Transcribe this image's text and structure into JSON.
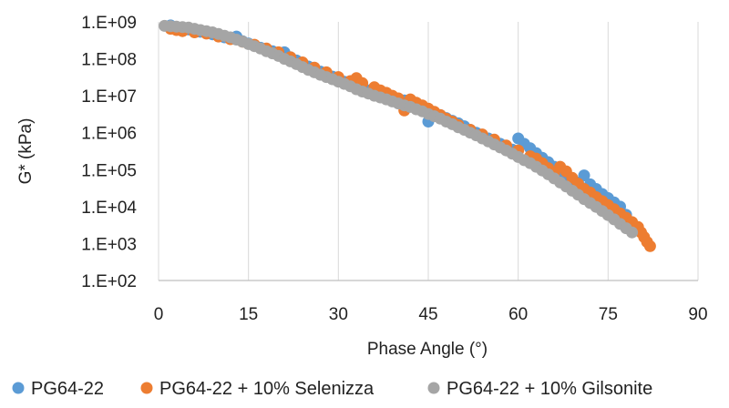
{
  "chart_data": {
    "type": "scatter",
    "xlabel": "Phase Angle (°)",
    "ylabel": "G* (kPa)",
    "xlim": [
      0,
      90
    ],
    "ylim_log10": [
      2,
      9
    ],
    "y_scale": "log",
    "grid": "vertical",
    "legend_placement": "bottom",
    "x_ticks": [
      "0",
      "15",
      "30",
      "45",
      "60",
      "75",
      "90"
    ],
    "y_ticks": [
      "1.E+02",
      "1.E+03",
      "1.E+04",
      "1.E+05",
      "1.E+06",
      "1.E+07",
      "1.E+08",
      "1.E+09"
    ],
    "series": [
      {
        "name": "PG64-22",
        "color": "#5B9BD5",
        "points": [
          [
            2,
            800000000
          ],
          [
            3,
            700000000
          ],
          [
            4,
            650000000
          ],
          [
            5,
            620000000
          ],
          [
            6,
            580000000
          ],
          [
            7,
            540000000
          ],
          [
            8,
            500000000
          ],
          [
            9,
            460000000
          ],
          [
            10,
            420000000
          ],
          [
            11,
            380000000
          ],
          [
            12,
            350000000
          ],
          [
            13,
            400000000
          ],
          [
            14,
            300000000
          ],
          [
            15,
            260000000
          ],
          [
            16,
            230000000
          ],
          [
            17,
            200000000
          ],
          [
            18,
            180000000
          ],
          [
            19,
            160000000
          ],
          [
            20,
            140000000
          ],
          [
            21,
            150000000
          ],
          [
            22,
            110000000
          ],
          [
            23,
            90000000
          ],
          [
            24,
            75000000
          ],
          [
            25,
            62000000
          ],
          [
            26,
            52000000
          ],
          [
            27,
            45000000
          ],
          [
            28,
            38000000
          ],
          [
            29,
            33000000
          ],
          [
            30,
            28000000
          ],
          [
            31,
            24000000
          ],
          [
            32,
            21000000
          ],
          [
            33,
            19000000
          ],
          [
            34,
            16000000
          ],
          [
            35,
            14000000
          ],
          [
            36,
            12000000
          ],
          [
            37,
            11000000
          ],
          [
            38,
            9500000
          ],
          [
            39,
            8500000
          ],
          [
            40,
            8000000
          ],
          [
            41,
            7500000
          ],
          [
            42,
            7000000
          ],
          [
            43,
            6000000
          ],
          [
            44,
            5000000
          ],
          [
            45,
            2000000
          ],
          [
            46,
            3500000
          ],
          [
            47,
            3000000
          ],
          [
            48,
            2500000
          ],
          [
            49,
            2100000
          ],
          [
            50,
            1800000
          ],
          [
            51,
            1500000
          ],
          [
            52,
            1200000
          ],
          [
            53,
            1000000
          ],
          [
            54,
            850000
          ],
          [
            55,
            700000
          ],
          [
            56,
            600000
          ],
          [
            57,
            500000
          ],
          [
            58,
            420000
          ],
          [
            59,
            350000
          ],
          [
            60,
            700000
          ],
          [
            61,
            500000
          ],
          [
            62,
            380000
          ],
          [
            63,
            280000
          ],
          [
            64,
            210000
          ],
          [
            65,
            160000
          ],
          [
            66,
            120000
          ],
          [
            67,
            90000
          ],
          [
            68,
            70000
          ],
          [
            69,
            55000
          ],
          [
            70,
            45000
          ],
          [
            71,
            70000
          ],
          [
            72,
            40000
          ],
          [
            73,
            30000
          ],
          [
            74,
            22000
          ],
          [
            75,
            17000
          ],
          [
            76,
            13000
          ],
          [
            77,
            10000
          ],
          [
            78,
            6000
          ],
          [
            79,
            3500
          ]
        ]
      },
      {
        "name": "PG64-22 + 10% Selenizza",
        "color": "#ED7D31",
        "points": [
          [
            2,
            650000000
          ],
          [
            3,
            600000000
          ],
          [
            4,
            560000000
          ],
          [
            6,
            520000000
          ],
          [
            8,
            480000000
          ],
          [
            10,
            400000000
          ],
          [
            12,
            340000000
          ],
          [
            14,
            290000000
          ],
          [
            16,
            240000000
          ],
          [
            18,
            190000000
          ],
          [
            20,
            150000000
          ],
          [
            22,
            110000000
          ],
          [
            24,
            80000000
          ],
          [
            26,
            58000000
          ],
          [
            28,
            43000000
          ],
          [
            30,
            32000000
          ],
          [
            32,
            25000000
          ],
          [
            33,
            30000000
          ],
          [
            34,
            22000000
          ],
          [
            36,
            17000000
          ],
          [
            37,
            14000000
          ],
          [
            38,
            12000000
          ],
          [
            39,
            10000000
          ],
          [
            40,
            8500000
          ],
          [
            41,
            4000000
          ],
          [
            42,
            8000000
          ],
          [
            43,
            6500000
          ],
          [
            44,
            5500000
          ],
          [
            45,
            4500000
          ],
          [
            46,
            3700000
          ],
          [
            47,
            3000000
          ],
          [
            48,
            2400000
          ],
          [
            49,
            2000000
          ],
          [
            50,
            1600000
          ],
          [
            52,
            1200000
          ],
          [
            54,
            900000
          ],
          [
            56,
            650000
          ],
          [
            58,
            450000
          ],
          [
            60,
            330000
          ],
          [
            62,
            230000
          ],
          [
            63,
            200000
          ],
          [
            64,
            150000
          ],
          [
            65,
            110000
          ],
          [
            66,
            80000
          ],
          [
            67,
            120000
          ],
          [
            68,
            90000
          ],
          [
            69,
            60000
          ],
          [
            70,
            42000
          ],
          [
            71,
            30000
          ],
          [
            72,
            24000
          ],
          [
            73,
            18000
          ],
          [
            74,
            14000
          ],
          [
            75,
            11000
          ],
          [
            76,
            8500
          ],
          [
            77,
            6500
          ],
          [
            78,
            5000
          ],
          [
            79,
            3800
          ],
          [
            80,
            2800
          ],
          [
            80.5,
            2000
          ],
          [
            81,
            1500
          ],
          [
            81.5,
            1100
          ],
          [
            82,
            850
          ]
        ]
      },
      {
        "name": "PG64-22 + 10% Gilsonite",
        "color": "#A5A5A5",
        "points": [
          [
            1,
            780000000
          ],
          [
            2,
            760000000
          ],
          [
            3,
            740000000
          ],
          [
            4,
            720000000
          ],
          [
            5,
            700000000
          ],
          [
            6,
            650000000
          ],
          [
            7,
            600000000
          ],
          [
            8,
            560000000
          ],
          [
            9,
            520000000
          ],
          [
            10,
            470000000
          ],
          [
            11,
            420000000
          ],
          [
            12,
            380000000
          ],
          [
            13,
            330000000
          ],
          [
            14,
            290000000
          ],
          [
            15,
            250000000
          ],
          [
            16,
            220000000
          ],
          [
            17,
            190000000
          ],
          [
            18,
            160000000
          ],
          [
            19,
            140000000
          ],
          [
            20,
            120000000
          ],
          [
            21,
            100000000
          ],
          [
            22,
            85000000
          ],
          [
            23,
            72000000
          ],
          [
            24,
            60000000
          ],
          [
            25,
            50000000
          ],
          [
            26,
            43000000
          ],
          [
            27,
            37000000
          ],
          [
            28,
            32000000
          ],
          [
            29,
            28000000
          ],
          [
            30,
            24000000
          ],
          [
            31,
            21000000
          ],
          [
            32,
            18000000
          ],
          [
            33,
            15000000
          ],
          [
            34,
            13000000
          ],
          [
            35,
            11500000
          ],
          [
            36,
            10000000
          ],
          [
            37,
            9000000
          ],
          [
            38,
            8000000
          ],
          [
            39,
            7000000
          ],
          [
            40,
            6200000
          ],
          [
            41,
            5500000
          ],
          [
            42,
            5000000
          ],
          [
            43,
            4300000
          ],
          [
            44,
            3800000
          ],
          [
            45,
            3200000
          ],
          [
            46,
            2800000
          ],
          [
            47,
            2400000
          ],
          [
            48,
            2000000
          ],
          [
            49,
            1700000
          ],
          [
            50,
            1400000
          ],
          [
            51,
            1200000
          ],
          [
            52,
            1000000
          ],
          [
            53,
            850000
          ],
          [
            54,
            700000
          ],
          [
            55,
            580000
          ],
          [
            56,
            480000
          ],
          [
            57,
            400000
          ],
          [
            58,
            330000
          ],
          [
            59,
            270000
          ],
          [
            60,
            220000
          ],
          [
            61,
            180000
          ],
          [
            62,
            150000
          ],
          [
            63,
            120000
          ],
          [
            64,
            95000
          ],
          [
            65,
            75000
          ],
          [
            66,
            58000
          ],
          [
            67,
            45000
          ],
          [
            68,
            35000
          ],
          [
            69,
            27000
          ],
          [
            70,
            21000
          ],
          [
            71,
            16000
          ],
          [
            72,
            12500
          ],
          [
            73,
            9800
          ],
          [
            74,
            7600
          ],
          [
            75,
            5900
          ],
          [
            76,
            4500
          ],
          [
            77,
            3400
          ],
          [
            78,
            2600
          ],
          [
            79,
            2000
          ]
        ]
      }
    ]
  }
}
